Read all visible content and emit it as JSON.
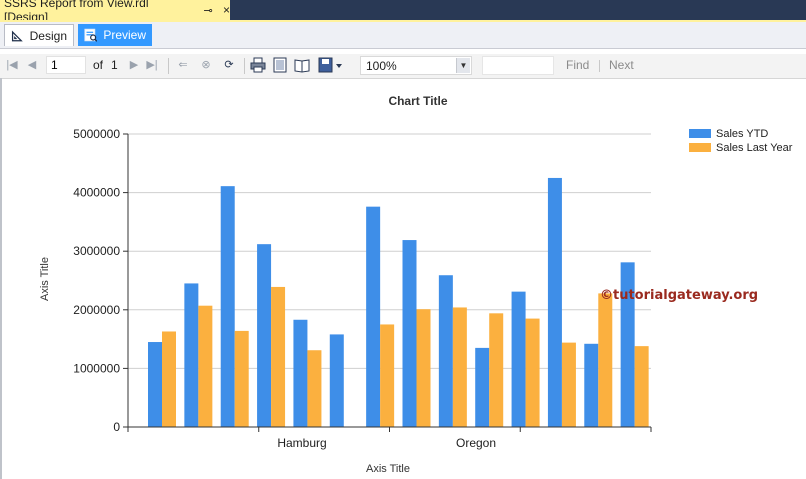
{
  "window": {
    "document_tab": "SSRS Report from View.rdl [Design]",
    "pin_glyph": "⊸",
    "close_glyph": "×"
  },
  "view_tabs": [
    {
      "label": "Design",
      "icon": "design-ruler-icon"
    },
    {
      "label": "Preview",
      "icon": "preview-report-icon"
    }
  ],
  "toolbar": {
    "page_current": "1",
    "of_label": "of",
    "page_total": "1",
    "zoom": "100%",
    "find_label": "Find",
    "next_label": "Next",
    "icons": [
      "first-page-icon",
      "prev-page-icon",
      "next-page-icon",
      "last-page-icon",
      "back-icon",
      "stop-icon",
      "refresh-icon",
      "print-icon",
      "print-layout-icon",
      "page-setup-icon",
      "export-icon"
    ]
  },
  "watermark": "©tutorialgateway.org",
  "colors": {
    "series1": "#3e8ee8",
    "series2": "#fbb03f",
    "grid": "#cfcfcf",
    "axis": "#333333"
  },
  "chart_data": {
    "type": "bar",
    "title": "Chart Title",
    "xlabel": "Axis Title",
    "ylabel": "Axis Title",
    "ylim": [
      0,
      5000000
    ],
    "yticks": [
      "0",
      "1000000",
      "2000000",
      "3000000",
      "4000000",
      "5000000"
    ],
    "category_labels_shown": [
      "Hamburg",
      "Oregon"
    ],
    "legend_position": "top-right",
    "grid": true,
    "series": [
      {
        "name": "Sales YTD",
        "values": [
          1450000,
          2450000,
          4110000,
          3120000,
          1830000,
          1580000,
          3760000,
          3190000,
          2590000,
          1350000,
          2310000,
          4250000,
          1420000,
          2810000
        ]
      },
      {
        "name": "Sales Last Year",
        "values": [
          1630000,
          2070000,
          1640000,
          2390000,
          1310000,
          null,
          1750000,
          2010000,
          2040000,
          1940000,
          1850000,
          1440000,
          2280000,
          1380000
        ]
      }
    ]
  }
}
